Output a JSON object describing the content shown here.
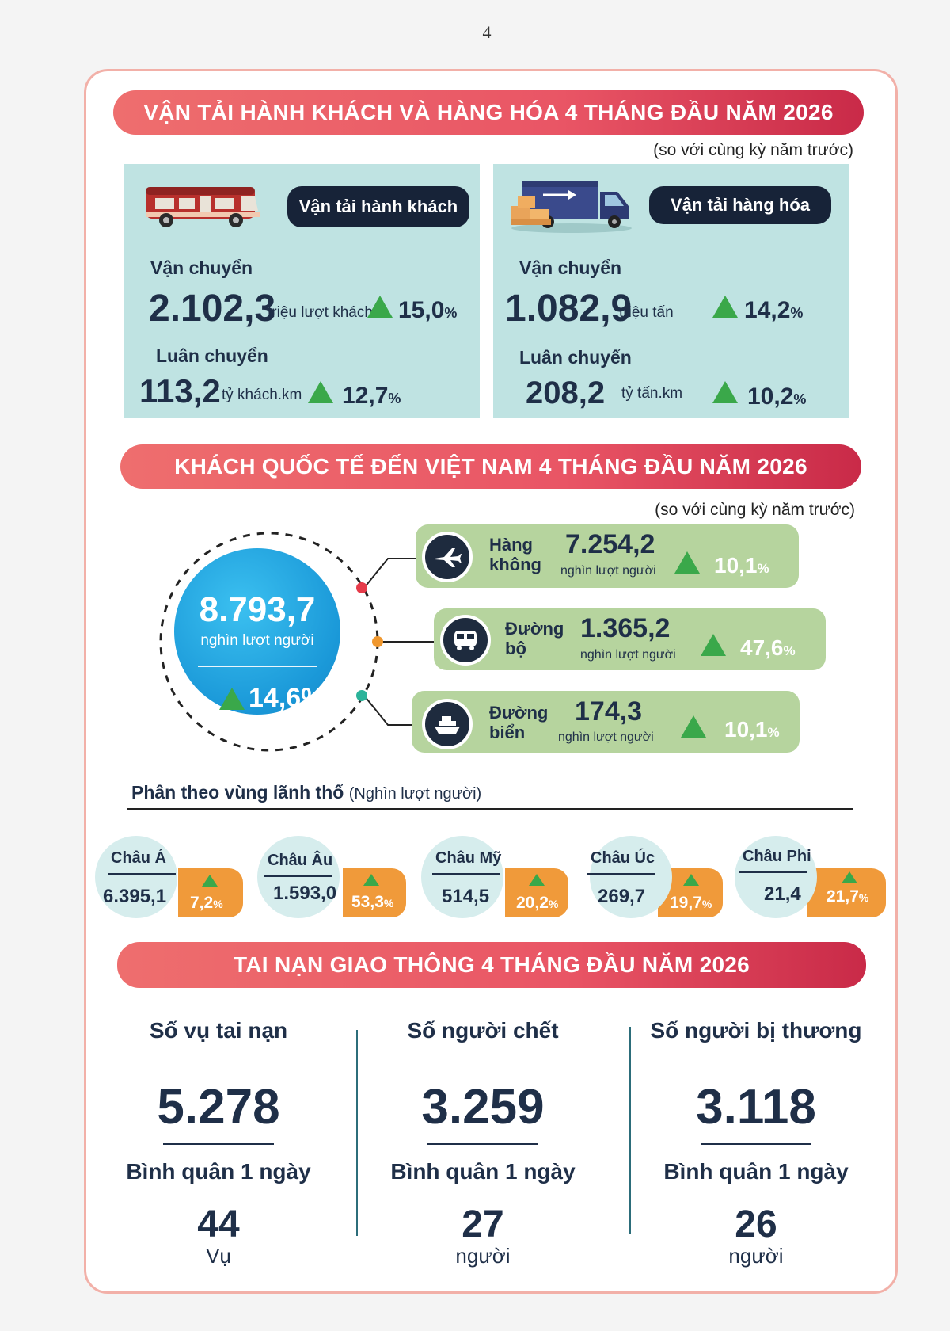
{
  "page_number": "4",
  "transport": {
    "title": "VẬN TẢI HÀNH KHÁCH VÀ HÀNG HÓA 4 THÁNG ĐẦU NĂM 2026",
    "note": "(so với cùng kỳ năm trước)",
    "passenger": {
      "label": "Vận tải hành khách",
      "carried_label": "Vận chuyển",
      "carried_value": "2.102,3",
      "carried_unit": "triệu lượt khách",
      "carried_pct": "15,0",
      "rotation_label": "Luân chuyển",
      "rotation_value": "113,2",
      "rotation_unit": "tỷ khách.km",
      "rotation_pct": "12,7"
    },
    "freight": {
      "label": "Vận tải hàng hóa",
      "carried_label": "Vận chuyển",
      "carried_value": "1.082,9",
      "carried_unit": "triệu tấn",
      "carried_pct": "14,2",
      "rotation_label": "Luân chuyển",
      "rotation_value": "208,2",
      "rotation_unit": "tỷ tấn.km",
      "rotation_pct": "10,2"
    },
    "percent_sign": "%"
  },
  "visitors": {
    "title": "KHÁCH QUỐC TẾ ĐẾN VIỆT NAM 4 THÁNG ĐẦU NĂM 2026",
    "note": "(so với cùng kỳ năm trước)",
    "total_value": "8.793,7",
    "total_unit": "nghìn lượt người",
    "total_pct": "14,6%",
    "modes": [
      {
        "label_1": "Hàng",
        "label_2": "không",
        "value": "7.254,2",
        "unit": "nghìn lượt người",
        "pct": "10,1",
        "icon": "airplane-icon",
        "dot_color": "#e63b4a"
      },
      {
        "label_1": "Đường",
        "label_2": "bộ",
        "value": "1.365,2",
        "unit": "nghìn lượt người",
        "pct": "47,6",
        "icon": "bus-icon",
        "dot_color": "#f0982f"
      },
      {
        "label_1": "Đường",
        "label_2": "biển",
        "value": "174,3",
        "unit": "nghìn lượt người",
        "pct": "10,1",
        "icon": "ship-icon",
        "dot_color": "#2bb39a"
      }
    ],
    "region_heading": "Phân theo vùng lãnh thổ",
    "region_unit": "(Nghìn lượt người)",
    "regions": [
      {
        "name": "Châu Á",
        "value": "6.395,1",
        "pct": "7,2"
      },
      {
        "name": "Châu Âu",
        "value": "1.593,0",
        "pct": "53,3"
      },
      {
        "name": "Châu Mỹ",
        "value": "514,5",
        "pct": "20,2"
      },
      {
        "name": "Châu Úc",
        "value": "269,7",
        "pct": "19,7"
      },
      {
        "name": "Châu Phi",
        "value": "21,4",
        "pct": "21,7"
      }
    ]
  },
  "accidents": {
    "title": "TAI NẠN GIAO THÔNG 4 THÁNG ĐẦU NĂM 2026",
    "columns": [
      {
        "title": "Số vụ tai nạn",
        "value": "5.278",
        "avg_label": "Bình quân 1 ngày",
        "avg_value": "44",
        "avg_unit": "Vụ"
      },
      {
        "title": "Số người chết",
        "value": "3.259",
        "avg_label": "Bình quân 1 ngày",
        "avg_value": "27",
        "avg_unit": "người"
      },
      {
        "title": "Số người bị thương",
        "value": "3.118",
        "avg_label": "Bình quân 1 ngày",
        "avg_value": "26",
        "avg_unit": "người"
      }
    ]
  },
  "colors": {
    "banner_red": "#e95565",
    "panel_teal": "#bfe3e2",
    "card_green": "#b6d49e",
    "navy": "#1f2f48",
    "growth_green": "#3aa84a",
    "orange": "#f09a3a",
    "circle_blue": "#1ea7e4"
  }
}
